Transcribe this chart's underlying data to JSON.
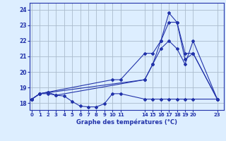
{
  "title": "Graphe des températures (°C)",
  "bg_color": "#ddeeff",
  "grid_color": "#aabbcc",
  "line_color": "#2233aa",
  "xlim": [
    -0.3,
    23.8
  ],
  "ylim": [
    17.55,
    24.45
  ],
  "yticks": [
    18,
    19,
    20,
    21,
    22,
    23,
    24
  ],
  "x_tick_positions": [
    0,
    1,
    2,
    3,
    4,
    5,
    6,
    7,
    8,
    9,
    10,
    11,
    14,
    15,
    16,
    17,
    18,
    19,
    20,
    23
  ],
  "x_tick_labels": [
    "0",
    "1",
    "2",
    "3",
    "4",
    "5",
    "6",
    "7",
    "8",
    "9",
    "10",
    "11",
    "14",
    "15",
    "16",
    "17",
    "18",
    "19",
    "20",
    "23"
  ],
  "series1_x": [
    0,
    1,
    2,
    3,
    4,
    5,
    6,
    7,
    8,
    9,
    10,
    11,
    14,
    15,
    16,
    17,
    18,
    19,
    20,
    23
  ],
  "series1_y": [
    18.25,
    18.6,
    18.6,
    18.5,
    18.45,
    18.1,
    17.8,
    17.75,
    17.75,
    17.95,
    18.6,
    18.6,
    18.25,
    18.25,
    18.25,
    18.25,
    18.25,
    18.25,
    18.25,
    18.25
  ],
  "series2_x": [
    0,
    1,
    2,
    3,
    14,
    15,
    16,
    17,
    18,
    19,
    20,
    23
  ],
  "series2_y": [
    18.25,
    18.6,
    18.7,
    18.5,
    19.5,
    20.5,
    21.5,
    22.0,
    21.5,
    20.5,
    22.0,
    18.25
  ],
  "series3_x": [
    0,
    1,
    2,
    10,
    11,
    14,
    15,
    16,
    17,
    18,
    19,
    20,
    23
  ],
  "series3_y": [
    18.25,
    18.6,
    18.7,
    19.5,
    19.5,
    21.2,
    21.2,
    22.0,
    23.2,
    23.2,
    21.2,
    21.2,
    18.25
  ],
  "series4_x": [
    0,
    1,
    14,
    15,
    16,
    17,
    18,
    19,
    20,
    23
  ],
  "series4_y": [
    18.25,
    18.6,
    19.5,
    20.5,
    22.0,
    23.8,
    23.2,
    20.8,
    21.2,
    18.25
  ]
}
